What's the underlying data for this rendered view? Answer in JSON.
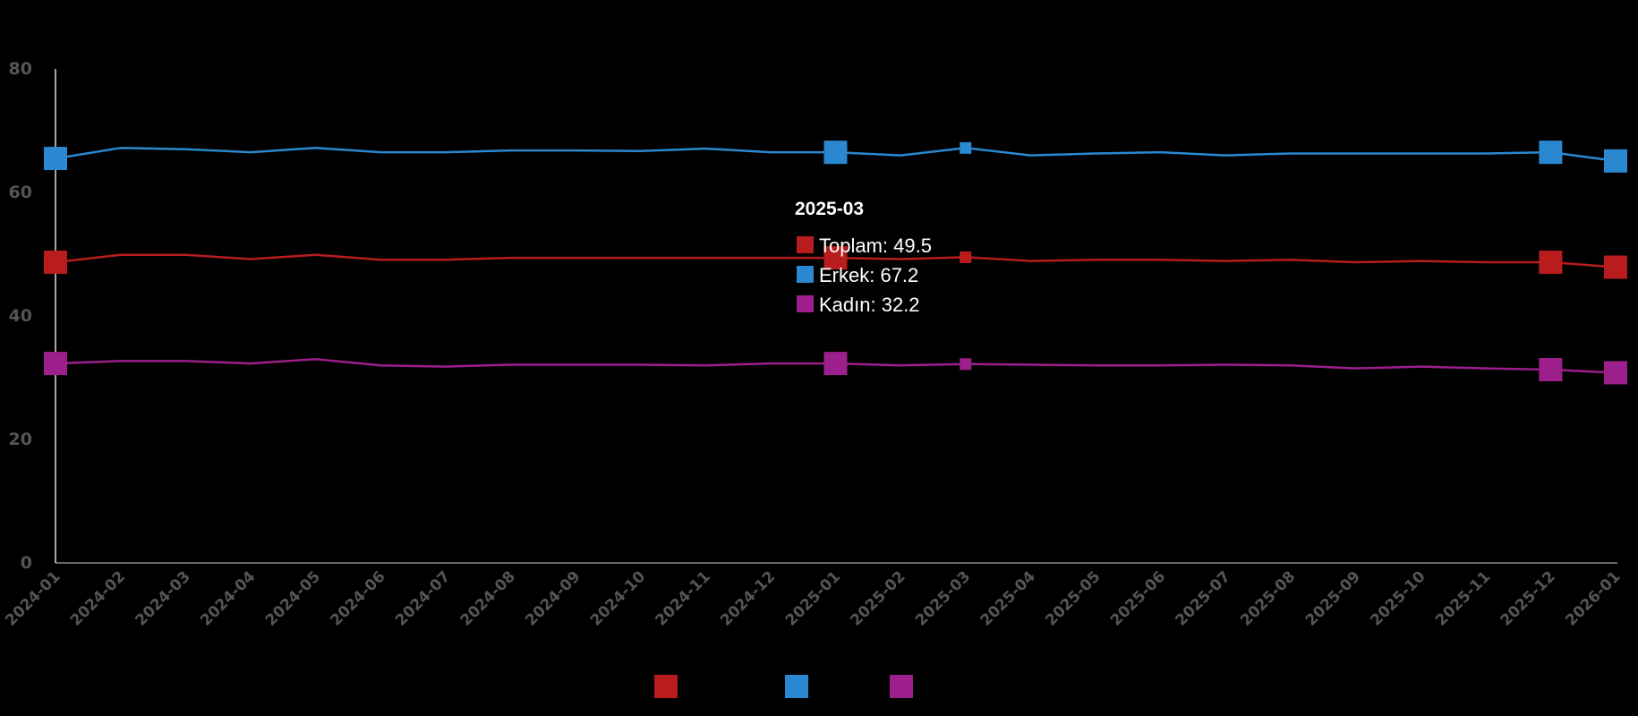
{
  "chart_data": {
    "type": "line",
    "title": "",
    "xlabel": "",
    "ylabel": "",
    "ylim": [
      0,
      80
    ],
    "yticks": [
      0,
      20,
      40,
      60,
      80
    ],
    "grid": false,
    "legend_position": "bottom",
    "x": [
      "2024-01",
      "2024-02",
      "2024-03",
      "2024-04",
      "2024-05",
      "2024-06",
      "2024-07",
      "2024-08",
      "2024-09",
      "2024-10",
      "2024-11",
      "2024-12",
      "2025-01",
      "2025-02",
      "2025-03",
      "2025-04",
      "2025-05",
      "2025-06",
      "2025-07",
      "2025-08",
      "2025-09",
      "2025-10",
      "2025-11",
      "2025-12",
      "2026-01"
    ],
    "series": [
      {
        "name": "Toplam",
        "color": "#b81c1c",
        "values": [
          48.7,
          49.9,
          49.9,
          49.2,
          49.9,
          49.1,
          49.1,
          49.4,
          49.4,
          49.4,
          49.4,
          49.4,
          49.4,
          49.2,
          49.5,
          48.9,
          49.1,
          49.1,
          48.9,
          49.1,
          48.7,
          48.9,
          48.7,
          48.7,
          47.9
        ]
      },
      {
        "name": "Erkek",
        "color": "#2a88d0",
        "values": [
          65.5,
          67.2,
          67.0,
          66.5,
          67.2,
          66.5,
          66.5,
          66.8,
          66.8,
          66.7,
          67.1,
          66.5,
          66.5,
          66.0,
          67.2,
          66.0,
          66.3,
          66.5,
          66.0,
          66.3,
          66.3,
          66.3,
          66.3,
          66.5,
          65.1
        ]
      },
      {
        "name": "Kadın",
        "color": "#9c1f8c",
        "values": [
          32.3,
          32.7,
          32.7,
          32.3,
          33.0,
          32.0,
          31.8,
          32.1,
          32.1,
          32.1,
          32.0,
          32.3,
          32.3,
          32.0,
          32.2,
          32.1,
          32.0,
          32.0,
          32.1,
          32.0,
          31.5,
          31.8,
          31.5,
          31.3,
          30.8
        ]
      }
    ],
    "highlighted_markers": [
      "2024-01",
      "2025-01",
      "2025-12",
      "2026-01"
    ],
    "tooltip": {
      "title": "2025-03",
      "rows": [
        "Toplam: 49.5",
        "Erkek: 67.2",
        "Kadın: 32.2"
      ]
    }
  }
}
